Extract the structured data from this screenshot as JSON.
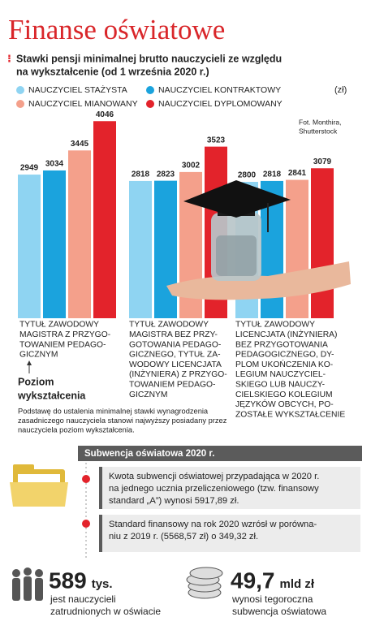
{
  "header": {
    "title": "Finanse oświatowe",
    "subtitle": [
      "Stawki pensji minimalnej brutto nauczycieli ze względu",
      "na wykształcenie (od 1 września 2020 r.)"
    ]
  },
  "chart_data": {
    "type": "bar",
    "unit": "(zł)",
    "credit": [
      "Fot. Monthira,",
      "Shutterstock"
    ],
    "categories": [
      [
        "TYTUŁ ZAWODOWY",
        "MAGISTRA Z PRZYGO-",
        "TOWANIEM PEDAGO-",
        "GICZNYM"
      ],
      [
        "TYTUŁ ZAWODOWY",
        "MAGISTRA BEZ PRZY-",
        "GOTOWANIA PEDAGO-",
        "GICZNEGO, TYTUŁ ZA-",
        "WODOWY LICENCJATA",
        "(INŻYNIERA) Z PRZYGO-",
        "TOWANIEM PEDAGO-",
        "GICZNYM"
      ],
      [
        "TYTUŁ ZAWODOWY",
        "LICENCJATA (INŻYNIERA)",
        "BEZ PRZYGOTOWANIA",
        "PEDAGOGICZNEGO, DY-",
        "PLOM UKOŃCZENIA KO-",
        "LEGIUM NAUCZYCIEL-",
        "SKIEGO LUB NAUCZY-",
        "CIELSKIEGO KOLEGIUM",
        "JĘZYKÓW OBCYCH, PO-",
        "ZOSTAŁE WYKSZTAŁCENIE"
      ]
    ],
    "x_label": [
      "Poziom",
      "wykształcenia"
    ],
    "series": [
      {
        "name": "NAUCZYCIEL STAŻYSTA",
        "color": "#8fd4f2",
        "values": [
          2949,
          2818,
          2800
        ]
      },
      {
        "name": "NAUCZYCIEL KONTRAKTOWY",
        "color": "#1ba3dd",
        "values": [
          3034,
          2823,
          2818
        ]
      },
      {
        "name": "NAUCZYCIEL MIANOWANY",
        "color": "#f4a08b",
        "values": [
          3445,
          3002,
          2841
        ]
      },
      {
        "name": "NAUCZYCIEL DYPLOMOWANY",
        "color": "#e3232b",
        "values": [
          4046,
          3523,
          3079
        ]
      }
    ],
    "ylim": [
      0,
      4200
    ]
  },
  "note": [
    "Podstawę do ustalenia minimalnej stawki wynagrodzenia",
    "zasadniczego nauczyciela stanowi najwyższy posiadany przez",
    "nauczyciela poziom wykształcenia."
  ],
  "subsidy": {
    "title": "Subwencja oświatowa 2020 r.",
    "items": [
      [
        "Kwota subwencji oświatowej przypadająca w 2020 r.",
        "na jednego ucznia przeliczeniowego (tzw. finansowy",
        "standard „A”) wynosi 5917,89 zł."
      ],
      [
        "Standard finansowy na rok 2020 wzrósł w porówna-",
        "niu z 2019 r. (5568,57 zł) o 349,32 zł."
      ]
    ]
  },
  "stats": [
    {
      "value": "589",
      "unit": "tys.",
      "text": [
        "jest nauczycieli",
        "zatrudnionych w oświacie"
      ]
    },
    {
      "value": "49,7",
      "unit": "mld zł",
      "text": [
        "wynosi tegoroczna",
        "subwencja oświatowa"
      ]
    }
  ]
}
